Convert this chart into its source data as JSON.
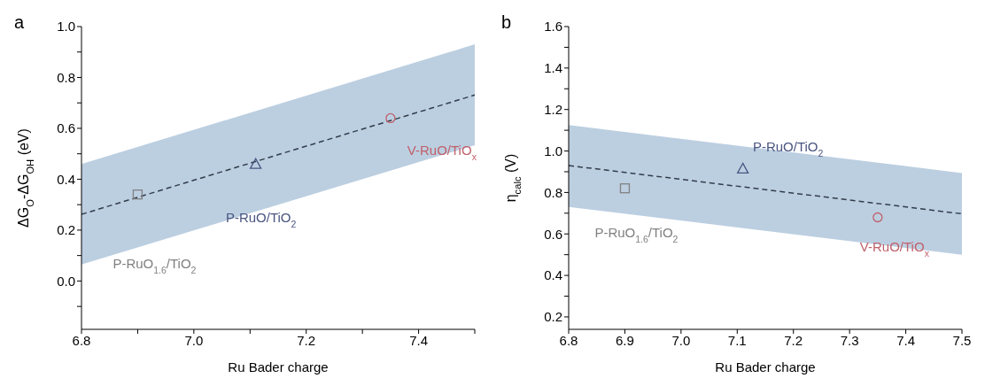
{
  "chart_data": [
    {
      "type": "scatter",
      "title": "a",
      "xlabel": "Ru Bader charge",
      "ylabel": "ΔG$_{O}$-ΔG$_{OH}$ (eV)",
      "xlim": [
        6.8,
        7.5
      ],
      "xticks": [
        6.8,
        {
          "value": 6.9,
          "label": null
        },
        {
          "value": 7,
          "label": "7.0"
        },
        {
          "value": 7.1,
          "label": null
        },
        7.2,
        {
          "value": 7.3,
          "label": null
        },
        7.4,
        {
          "value": 7.5,
          "label": null
        }
      ],
      "ylim": [
        -0.19,
        1.0
      ],
      "yticks": [
        {
          "value": -0.1,
          "label": null
        },
        {
          "value": 0,
          "label": "0.0"
        },
        {
          "value": 0.1,
          "label": null
        },
        0.2,
        {
          "value": 0.3,
          "label": null
        },
        0.4,
        {
          "value": 0.5,
          "label": null
        },
        0.6,
        {
          "value": 0.7,
          "label": null
        },
        0.8,
        {
          "value": 0.9,
          "label": null
        },
        {
          "value": 1,
          "label": "1.0"
        }
      ],
      "grid": false,
      "legend": false,
      "series": [
        {
          "type": "line",
          "color": "#333d4a",
          "line_style": "dashed",
          "marker": "none",
          "x": [
            6.8,
            7.5
          ],
          "values": [
            0.262,
            0.731
          ],
          "lower": [
            0.065,
            0.534
          ],
          "upper": [
            0.46,
            0.93
          ]
        },
        {
          "type": "scatter",
          "name": "P-RuO$_{1.6}$/TiO$_{2}$",
          "color": "#808080",
          "marker": "square",
          "x": [
            6.9
          ],
          "values": [
            0.34
          ]
        },
        {
          "type": "scatter",
          "name": "P-RuO/TiO$_{2}$",
          "color": "#4a5580",
          "marker": "triangle",
          "x": [
            7.11
          ],
          "values": [
            0.46
          ]
        },
        {
          "type": "scatter",
          "name": "V-RuO/TiO$_{x}$",
          "color": "#c0606a",
          "marker": "circle",
          "x": [
            7.35
          ],
          "values": [
            0.64
          ]
        }
      ]
    },
    {
      "type": "scatter",
      "title": "b",
      "xlabel": "Ru Bader charge",
      "ylabel": "η$_{calc}$ (V)",
      "xlim": [
        6.8,
        7.5
      ],
      "xticks": [
        6.8,
        6.9,
        {
          "value": 7,
          "label": "7.0"
        },
        7.1,
        7.2,
        7.3,
        7.4,
        7.5
      ],
      "ylim": [
        0.14,
        1.6
      ],
      "yticks": [
        0.2,
        {
          "value": 0.3,
          "label": null
        },
        0.4,
        {
          "value": 0.5,
          "label": null
        },
        0.6,
        {
          "value": 0.7,
          "label": null
        },
        0.8,
        {
          "value": 0.9,
          "label": null
        },
        {
          "value": 1,
          "label": "1.0"
        },
        {
          "value": 1.1,
          "label": null
        },
        1.2,
        {
          "value": 1.3,
          "label": null
        },
        1.4,
        {
          "value": 1.5,
          "label": null
        },
        1.6
      ],
      "grid": false,
      "legend": false,
      "series": [
        {
          "type": "line",
          "color": "#333d4a",
          "line_style": "dashed",
          "marker": "none",
          "x": [
            6.8,
            7.5
          ],
          "values": [
            0.93,
            0.697
          ],
          "lower": [
            0.73,
            0.5
          ],
          "upper": [
            1.125,
            0.894
          ]
        },
        {
          "type": "scatter",
          "name": "P-RuO$_{1.6}$/TiO$_{2}$",
          "color": "#808080",
          "marker": "square",
          "x": [
            6.9
          ],
          "values": [
            0.82
          ]
        },
        {
          "type": "scatter",
          "name": "P-RuO/TiO$_{2}$",
          "color": "#4a5580",
          "marker": "triangle",
          "x": [
            7.11
          ],
          "values": [
            0.915
          ]
        },
        {
          "type": "scatter",
          "name": "V-RuO/TiO$_{x}$",
          "color": "#c0606a",
          "marker": "circle",
          "x": [
            7.35
          ],
          "values": [
            0.68
          ]
        }
      ]
    }
  ]
}
